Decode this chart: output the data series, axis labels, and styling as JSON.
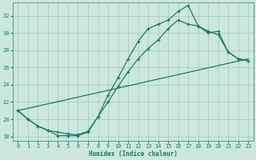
{
  "bg_color": "#cce8dd",
  "grid_color": "#aaccc0",
  "line_color": "#1a7a6e",
  "xlim": [
    -0.5,
    23.5
  ],
  "ylim": [
    17.5,
    33.5
  ],
  "yticks": [
    18,
    20,
    22,
    24,
    26,
    28,
    30,
    32
  ],
  "xlabel": "Humidex (Indice chaleur)",
  "line1_x": [
    0,
    1,
    2,
    3,
    4,
    5,
    6,
    7,
    8,
    9,
    10,
    11,
    12,
    13,
    14,
    15,
    16,
    17,
    18,
    19,
    20,
    21,
    22,
    23
  ],
  "line1_y": [
    21.0,
    20.0,
    19.2,
    18.7,
    18.1,
    18.1,
    18.1,
    18.5,
    20.3,
    22.8,
    24.8,
    27.0,
    29.0,
    30.5,
    31.0,
    31.5,
    32.5,
    33.2,
    30.8,
    30.2,
    29.8,
    27.8,
    27.0,
    26.8
  ],
  "line2_x": [
    0,
    1,
    2,
    3,
    4,
    5,
    6,
    7,
    8,
    9,
    10,
    11,
    12,
    13,
    14,
    15,
    16,
    17,
    18,
    19,
    20,
    21,
    22,
    23
  ],
  "line2_y": [
    21.0,
    20.0,
    19.2,
    18.7,
    18.5,
    18.3,
    18.2,
    18.6,
    20.3,
    22.0,
    23.8,
    25.5,
    27.0,
    28.2,
    29.2,
    30.5,
    31.5,
    31.0,
    30.8,
    30.0,
    30.2,
    27.8,
    27.0,
    26.8
  ],
  "line3_x": [
    0,
    23
  ],
  "line3_y": [
    21.0,
    27.0
  ]
}
